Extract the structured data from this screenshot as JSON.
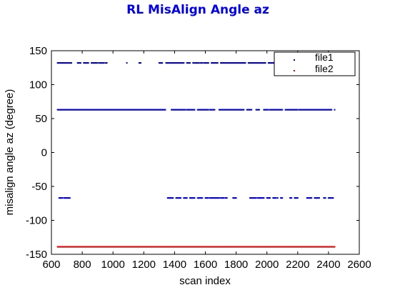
{
  "chart_data": {
    "type": "scatter",
    "title": "RL MisAlign Angle az",
    "xlabel": "scan index",
    "ylabel": "misalign angle az (degree)",
    "xlim": [
      600,
      2600
    ],
    "ylim": [
      -150,
      150
    ],
    "x_ticks": [
      "600",
      "800",
      "1000",
      "1200",
      "1400",
      "1600",
      "1800",
      "2000",
      "2200",
      "2400",
      "2600"
    ],
    "y_ticks": [
      "150",
      "100",
      "50",
      "0",
      "-50",
      "-100",
      "-150"
    ],
    "grid": false,
    "legend_position": "top-right",
    "series": [
      {
        "name": "file1",
        "color": "#0000cc",
        "levels": [
          {
            "y": 132,
            "ranges": [
              [
                640,
                730
              ],
              [
                770,
                790
              ],
              [
                810,
                840
              ],
              [
                860,
                900
              ],
              [
                910,
                940
              ],
              [
                950,
                960
              ],
              [
                1090,
                1090
              ],
              [
                1170,
                1180
              ],
              [
                1300,
                1320
              ],
              [
                1345,
                1460
              ],
              [
                1480,
                1500
              ],
              [
                1520,
                1560
              ],
              [
                1570,
                1580
              ],
              [
                1590,
                1620
              ],
              [
                1640,
                1680
              ],
              [
                1700,
                1860
              ],
              [
                1880,
                1990
              ],
              [
                2010,
                2060
              ],
              [
                2080,
                2120
              ],
              [
                2140,
                2180
              ],
              [
                2200,
                2230
              ],
              [
                2250,
                2270
              ],
              [
                2300,
                2330
              ],
              [
                2360,
                2420
              ]
            ]
          },
          {
            "y": 63,
            "ranges": [
              [
                640,
                1340
              ],
              [
                1380,
                1470
              ],
              [
                1480,
                1530
              ],
              [
                1550,
                1620
              ],
              [
                1630,
                1660
              ],
              [
                1690,
                1850
              ],
              [
                1870,
                1900
              ],
              [
                1930,
                1950
              ],
              [
                1980,
                2010
              ],
              [
                2020,
                2100
              ],
              [
                2120,
                2200
              ],
              [
                2210,
                2420
              ],
              [
                2440,
                2440
              ]
            ]
          },
          {
            "y": -67,
            "ranges": [
              [
                650,
                670
              ],
              [
                680,
                720
              ],
              [
                1355,
                1390
              ],
              [
                1410,
                1440
              ],
              [
                1460,
                1480
              ],
              [
                1500,
                1530
              ],
              [
                1550,
                1580
              ],
              [
                1600,
                1620
              ],
              [
                1630,
                1690
              ],
              [
                1700,
                1720
              ],
              [
                1730,
                1740
              ],
              [
                1780,
                1800
              ],
              [
                1890,
                1930
              ],
              [
                1940,
                1980
              ],
              [
                2000,
                2020
              ],
              [
                2040,
                2060
              ],
              [
                2070,
                2070
              ],
              [
                2090,
                2100
              ],
              [
                2150,
                2160
              ],
              [
                2180,
                2200
              ],
              [
                2260,
                2290
              ],
              [
                2310,
                2340
              ],
              [
                2370,
                2380
              ],
              [
                2400,
                2430
              ]
            ]
          }
        ]
      },
      {
        "name": "file2",
        "color": "#dd0000",
        "levels": [
          {
            "y": -139,
            "ranges": [
              [
                640,
                2440
              ]
            ]
          }
        ]
      }
    ]
  }
}
